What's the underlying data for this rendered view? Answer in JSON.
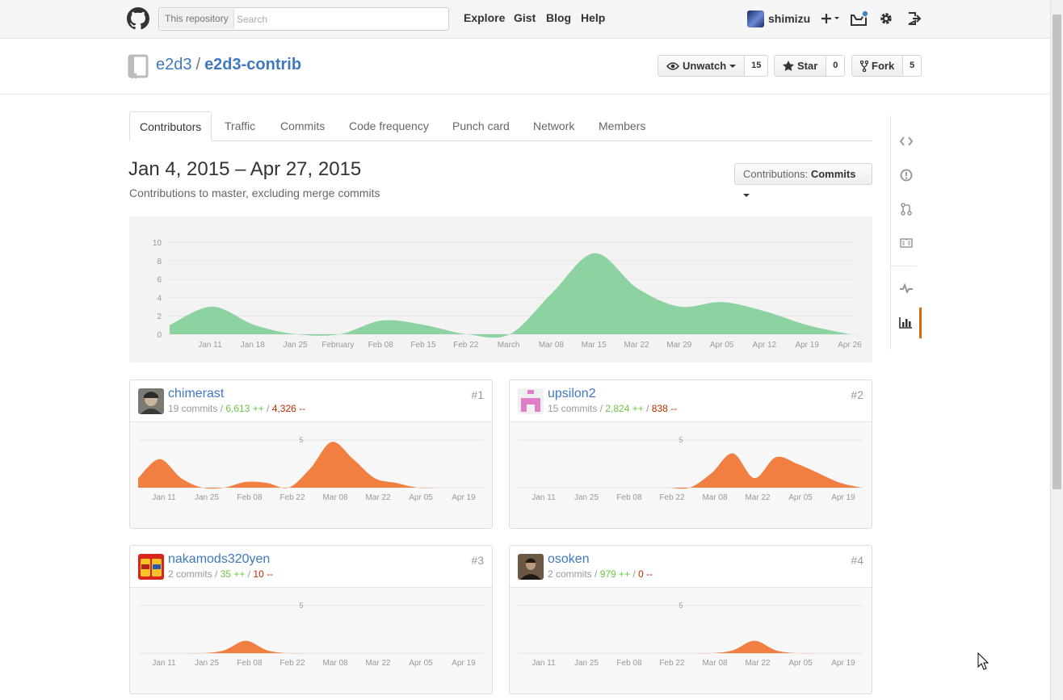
{
  "header": {
    "search_scope": "This repository",
    "search_placeholder": "Search",
    "nav": [
      "Explore",
      "Gist",
      "Blog",
      "Help"
    ],
    "username": "shimizu"
  },
  "repo": {
    "owner": "e2d3",
    "separator": "/",
    "name": "e2d3-contrib",
    "unwatch_label": "Unwatch",
    "watch_count": "15",
    "star_label": "Star",
    "star_count": "0",
    "fork_label": "Fork",
    "fork_count": "5"
  },
  "tabs": [
    "Contributors",
    "Traffic",
    "Commits",
    "Code frequency",
    "Punch card",
    "Network",
    "Members"
  ],
  "range_title": "Jan 4, 2015 – Apr 27, 2015",
  "range_subtitle": "Contributions to master, excluding merge commits",
  "contributions_select": {
    "label": "Contributions:",
    "value": "Commits"
  },
  "colors": {
    "main_area": "#8cd3a1",
    "contributor_area": "#f17f42",
    "accent": "#d26911",
    "link": "#4078c0"
  },
  "chart_data": [
    {
      "type": "area",
      "x_ticks": [
        "Jan 11",
        "Jan 18",
        "Jan 25",
        "February",
        "Feb 08",
        "Feb 15",
        "Feb 22",
        "March",
        "Mar 08",
        "Mar 15",
        "Mar 22",
        "Mar 29",
        "Apr 05",
        "Apr 12",
        "Apr 19",
        "Apr 26"
      ],
      "y_ticks": [
        "10",
        "8",
        "6",
        "4",
        "2",
        "0"
      ],
      "ylim": [
        0,
        10
      ],
      "x": [
        "Jan 4",
        "Jan 11",
        "Jan 18",
        "Jan 25",
        "Feb 1",
        "Feb 8",
        "Feb 15",
        "Feb 22",
        "Mar 1",
        "Mar 8",
        "Mar 15",
        "Mar 22",
        "Mar 29",
        "Apr 5",
        "Apr 12",
        "Apr 19",
        "Apr 26"
      ],
      "values": [
        1,
        3,
        1,
        0,
        0,
        1.5,
        1,
        0,
        0,
        4.5,
        8.8,
        5,
        3,
        3.5,
        2.5,
        1,
        0
      ]
    },
    {
      "type": "area",
      "contributor": "chimerast",
      "rank": "#1",
      "commits": "19 commits",
      "additions": "6,613 ++",
      "deletions": "4,326 --",
      "y_tick": "5",
      "ylim": [
        0,
        5
      ],
      "x_ticks": [
        "Jan 11",
        "Jan 25",
        "Feb 08",
        "Feb 22",
        "Mar 08",
        "Mar 22",
        "Apr 05",
        "Apr 19"
      ],
      "x": [
        "Jan 4",
        "Jan 11",
        "Jan 18",
        "Jan 25",
        "Feb 1",
        "Feb 8",
        "Feb 15",
        "Feb 22",
        "Mar 1",
        "Mar 8",
        "Mar 15",
        "Mar 22",
        "Mar 29",
        "Apr 5",
        "Apr 12",
        "Apr 19",
        "Apr 26"
      ],
      "values": [
        1,
        3,
        1,
        0,
        0,
        0.6,
        0.5,
        0,
        2,
        4.8,
        3,
        1,
        0.5,
        0,
        0,
        0,
        0
      ]
    },
    {
      "type": "area",
      "contributor": "upsilon2",
      "rank": "#2",
      "commits": "15 commits",
      "additions": "2,824 ++",
      "deletions": "838 --",
      "y_tick": "5",
      "ylim": [
        0,
        5
      ],
      "x_ticks": [
        "Jan 11",
        "Jan 25",
        "Feb 08",
        "Feb 22",
        "Mar 08",
        "Mar 22",
        "Apr 05",
        "Apr 19"
      ],
      "x": [
        "Jan 4",
        "Jan 11",
        "Jan 18",
        "Jan 25",
        "Feb 1",
        "Feb 8",
        "Feb 15",
        "Feb 22",
        "Mar 1",
        "Mar 8",
        "Mar 15",
        "Mar 22",
        "Mar 29",
        "Apr 5",
        "Apr 12",
        "Apr 19",
        "Apr 26"
      ],
      "values": [
        0,
        0,
        0,
        0,
        0,
        0,
        0,
        0,
        0,
        1.5,
        3.6,
        1,
        3.2,
        2.5,
        1.5,
        0.5,
        0
      ]
    },
    {
      "type": "area",
      "contributor": "nakamods320yen",
      "rank": "#3",
      "commits": "2 commits",
      "additions": "35 ++",
      "deletions": "10 --",
      "y_tick": "5",
      "ylim": [
        0,
        5
      ],
      "x_ticks": [
        "Jan 11",
        "Jan 25",
        "Feb 08",
        "Feb 22",
        "Mar 08",
        "Mar 22",
        "Apr 05",
        "Apr 19"
      ],
      "x": [
        "Jan 4",
        "Jan 11",
        "Jan 18",
        "Jan 25",
        "Feb 1",
        "Feb 8",
        "Feb 15",
        "Feb 22",
        "Mar 1",
        "Mar 8",
        "Mar 15",
        "Mar 22",
        "Mar 29",
        "Apr 5",
        "Apr 12",
        "Apr 19",
        "Apr 26"
      ],
      "values": [
        0,
        0,
        0,
        0,
        0.3,
        1.3,
        0.3,
        0,
        0,
        0,
        0,
        0,
        0,
        0,
        0,
        0,
        0
      ]
    },
    {
      "type": "area",
      "contributor": "osoken",
      "rank": "#4",
      "commits": "2 commits",
      "additions": "979 ++",
      "deletions": "0 --",
      "y_tick": "5",
      "ylim": [
        0,
        5
      ],
      "x_ticks": [
        "Jan 11",
        "Jan 25",
        "Feb 08",
        "Feb 22",
        "Mar 08",
        "Mar 22",
        "Apr 05",
        "Apr 19"
      ],
      "x": [
        "Jan 4",
        "Jan 11",
        "Jan 18",
        "Jan 25",
        "Feb 1",
        "Feb 8",
        "Feb 15",
        "Feb 22",
        "Mar 1",
        "Mar 8",
        "Mar 15",
        "Mar 22",
        "Mar 29",
        "Apr 5",
        "Apr 12",
        "Apr 19",
        "Apr 26"
      ],
      "values": [
        0,
        0,
        0,
        0,
        0,
        0,
        0,
        0,
        0,
        0,
        0.3,
        1.3,
        0.3,
        0,
        0,
        0,
        0
      ]
    }
  ]
}
